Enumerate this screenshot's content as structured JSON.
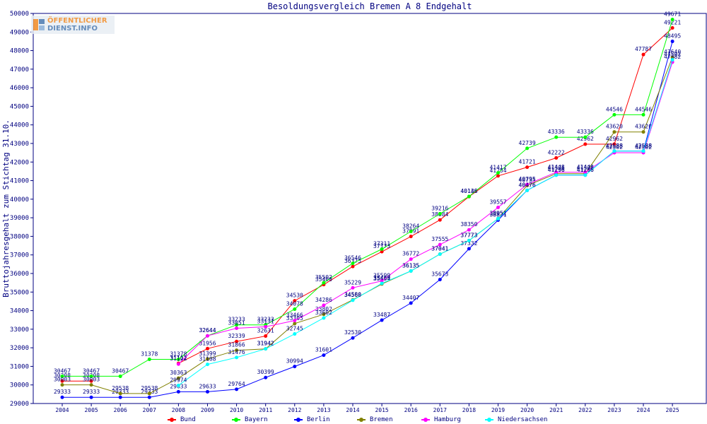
{
  "chart_data": {
    "type": "line",
    "title": "Besoldungsvergleich Bremen A 8 Endgehalt",
    "xlabel": "",
    "ylabel": "Bruttojahresgehalt zum Stichtag 31.10.",
    "ylim": [
      29000,
      50000
    ],
    "ytick_step": 1000,
    "grid": false,
    "legend_position": "bottom",
    "categories": [
      "2004",
      "2005",
      "2006",
      "2007",
      "2008",
      "2009",
      "2010",
      "2011",
      "2012",
      "2013",
      "2014",
      "2015",
      "2016",
      "2017",
      "2018",
      "2019",
      "2020",
      "2021",
      "2022",
      "2023",
      "2024",
      "2025"
    ],
    "series": [
      {
        "name": "Bund",
        "color": "#ff0000",
        "values": [
          30208,
          30208,
          null,
          null,
          31162,
          31956,
          32339,
          32631,
          34530,
          35400,
          36375,
          37173,
          37991,
          38884,
          40138,
          41254,
          41721,
          42222,
          42962,
          42962,
          47787,
          49221
        ]
      },
      {
        "name": "Bayern",
        "color": "#00ff00",
        "values": [
          30467,
          30467,
          30467,
          31378,
          31378,
          32644,
          33233,
          33233,
          34078,
          35502,
          36546,
          37311,
          38264,
          39216,
          40146,
          41417,
          42739,
          43336,
          43336,
          44546,
          44546,
          49671
        ]
      },
      {
        "name": "Berlin",
        "color": "#0000ff",
        "values": [
          29333,
          29333,
          29333,
          29333,
          29633,
          29633,
          29764,
          30399,
          30994,
          31601,
          32530,
          33487,
          34407,
          35673,
          37332,
          38871,
          40476,
          41296,
          41296,
          42588,
          42588,
          48495
        ]
      },
      {
        "name": "Bremen",
        "color": "#808000",
        "values": [
          30003,
          30003,
          29538,
          29538,
          30363,
          31399,
          31866,
          31942,
          33305,
          33802,
          34580,
          35434,
          36135,
          37041,
          37773,
          38951,
          40735,
          41376,
          41376,
          43620,
          43620,
          47640
        ]
      },
      {
        "name": "Hamburg",
        "color": "#ff00ff",
        "values": [
          null,
          null,
          null,
          null,
          31122,
          32644,
          33051,
          33131,
          33466,
          34286,
          35229,
          35599,
          36772,
          37555,
          38350,
          39557,
          40795,
          41448,
          41448,
          42502,
          42502,
          47382
        ]
      },
      {
        "name": "Niedersachsen",
        "color": "#00ffff",
        "values": [
          null,
          null,
          null,
          null,
          29974,
          31108,
          31476,
          31942,
          32745,
          33602,
          34560,
          35469,
          36135,
          37041,
          37773,
          38951,
          40476,
          41296,
          41296,
          42588,
          42588,
          47502
        ]
      }
    ]
  },
  "branding": {
    "logo_line1": "ÖFFENTLICHER",
    "logo_line2": "DIENST.INFO"
  }
}
